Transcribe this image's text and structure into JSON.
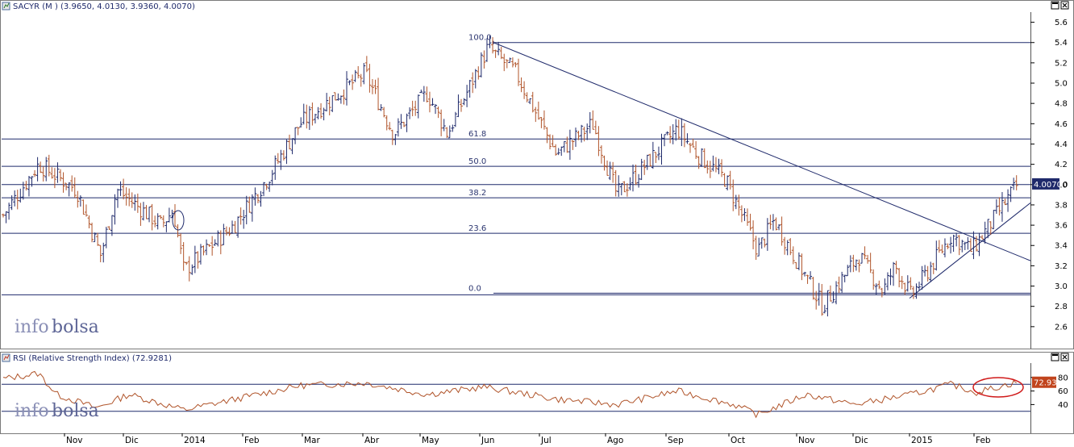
{
  "watermark": {
    "pre": "info",
    "post": "bolsa"
  },
  "price_panel": {
    "title": "SACYR (M ) (3.9650, 4.0130, 3.9360, 4.0070)",
    "last_price": "4.0070",
    "last_price_suffix": "0",
    "colors": {
      "up": "#1f2a6b",
      "down": "#b0542a",
      "lines": "#1f2a6b",
      "label_bg": "#1f2a6b"
    }
  },
  "rsi_panel": {
    "title": "RSI (Relative Strength Index) (72.9281)",
    "last_value": "72.93",
    "colors": {
      "line": "#b0542a",
      "label_bg": "#c1441d",
      "highlight": "#d01a1a"
    }
  },
  "x_axis": {
    "months": [
      "Nov",
      "Dic",
      "2014",
      "Feb",
      "Mar",
      "Abr",
      "May",
      "Jun",
      "Jul",
      "Ago",
      "Sep",
      "Oct",
      "Nov",
      "Dic",
      "2015",
      "Feb"
    ]
  },
  "chart_data": [
    {
      "type": "line",
      "subtype": "ohlc-bars",
      "title": "SACYR (M ) (3.9650, 4.0130, 3.9360, 4.0070)",
      "ylim": [
        2.4,
        5.7
      ],
      "yticks": [
        2.6,
        2.8,
        3.0,
        3.2,
        3.4,
        3.6,
        3.8,
        4.0,
        4.2,
        4.4,
        4.6,
        4.8,
        5.0,
        5.2,
        5.4,
        5.6
      ],
      "x_categories": [
        "Nov",
        "Dic",
        "2014",
        "Feb",
        "Mar",
        "Abr",
        "May",
        "Jun",
        "Jul",
        "Ago",
        "Sep",
        "Oct",
        "Nov",
        "Dic",
        "2015",
        "Feb"
      ],
      "price_path_approx": [
        {
          "x": "Oct-2013",
          "y": 3.7
        },
        {
          "x": "Oct-2013",
          "y": 4.2
        },
        {
          "x": "Nov",
          "y": 3.95
        },
        {
          "x": "Nov",
          "y": 3.3
        },
        {
          "x": "Dic",
          "y": 3.95
        },
        {
          "x": "Dic",
          "y": 3.6
        },
        {
          "x": "2014",
          "y": 3.75
        },
        {
          "x": "2014",
          "y": 3.15
        },
        {
          "x": "Feb",
          "y": 3.6
        },
        {
          "x": "Feb",
          "y": 4.1
        },
        {
          "x": "Mar",
          "y": 4.6
        },
        {
          "x": "Abr",
          "y": 5.1
        },
        {
          "x": "Abr",
          "y": 4.5
        },
        {
          "x": "May",
          "y": 4.9
        },
        {
          "x": "May",
          "y": 4.5
        },
        {
          "x": "Jun",
          "y": 5.35
        },
        {
          "x": "Jun",
          "y": 5.1
        },
        {
          "x": "Jul",
          "y": 4.3
        },
        {
          "x": "Jul",
          "y": 4.6
        },
        {
          "x": "Ago",
          "y": 3.9
        },
        {
          "x": "Ago",
          "y": 4.1
        },
        {
          "x": "Sep",
          "y": 4.55
        },
        {
          "x": "Sep",
          "y": 4.3
        },
        {
          "x": "Oct",
          "y": 4.05
        },
        {
          "x": "Oct",
          "y": 3.35
        },
        {
          "x": "Oct",
          "y": 3.65
        },
        {
          "x": "Nov",
          "y": 2.8
        },
        {
          "x": "Nov",
          "y": 3.3
        },
        {
          "x": "Dic",
          "y": 2.95
        },
        {
          "x": "Dic",
          "y": 3.2
        },
        {
          "x": "2015",
          "y": 2.9
        },
        {
          "x": "2015",
          "y": 3.5
        },
        {
          "x": "Feb",
          "y": 3.35
        },
        {
          "x": "Feb",
          "y": 4.0
        }
      ],
      "last_close": 4.007,
      "fibonacci_levels": [
        {
          "label": "100.0",
          "value": 5.4
        },
        {
          "label": "61.8",
          "value": 4.45
        },
        {
          "label": "50.0",
          "value": 4.18
        },
        {
          "label": "38.2",
          "value": 3.87
        },
        {
          "label": "23.6",
          "value": 3.52
        },
        {
          "label": "0.0",
          "value": 2.93
        }
      ],
      "horizontal_lines": [
        4.0
      ],
      "trendlines": [
        {
          "name": "downtrend",
          "from": {
            "x": "Jun",
            "y": 5.4
          },
          "to": {
            "x": "Feb",
            "y": 3.25
          }
        },
        {
          "name": "uptrend",
          "from": {
            "x": "Dic",
            "y": 2.88
          },
          "to": {
            "x": "Feb",
            "y": 3.82
          }
        }
      ]
    },
    {
      "type": "line",
      "title": "RSI (Relative Strength Index) (72.9281)",
      "ylim": [
        0,
        100
      ],
      "yticks": [
        40,
        60,
        80
      ],
      "reference_lines": [
        30,
        70
      ],
      "series_path_approx": [
        {
          "x": "Oct-2013",
          "y": 78
        },
        {
          "x": "Oct-2013",
          "y": 86
        },
        {
          "x": "Nov",
          "y": 55
        },
        {
          "x": "Nov",
          "y": 35
        },
        {
          "x": "Dic",
          "y": 55
        },
        {
          "x": "2014",
          "y": 32
        },
        {
          "x": "Feb",
          "y": 50
        },
        {
          "x": "Mar",
          "y": 68
        },
        {
          "x": "Abr",
          "y": 72
        },
        {
          "x": "May",
          "y": 55
        },
        {
          "x": "Jun",
          "y": 66
        },
        {
          "x": "Jul",
          "y": 48
        },
        {
          "x": "Ago",
          "y": 40
        },
        {
          "x": "Sep",
          "y": 60
        },
        {
          "x": "Oct",
          "y": 40
        },
        {
          "x": "Oct",
          "y": 25
        },
        {
          "x": "Nov",
          "y": 55
        },
        {
          "x": "Dic",
          "y": 40
        },
        {
          "x": "2015",
          "y": 55
        },
        {
          "x": "2015",
          "y": 70
        },
        {
          "x": "Feb",
          "y": 58
        },
        {
          "x": "Feb",
          "y": 72.9281
        }
      ],
      "last_value": 72.9281
    }
  ]
}
